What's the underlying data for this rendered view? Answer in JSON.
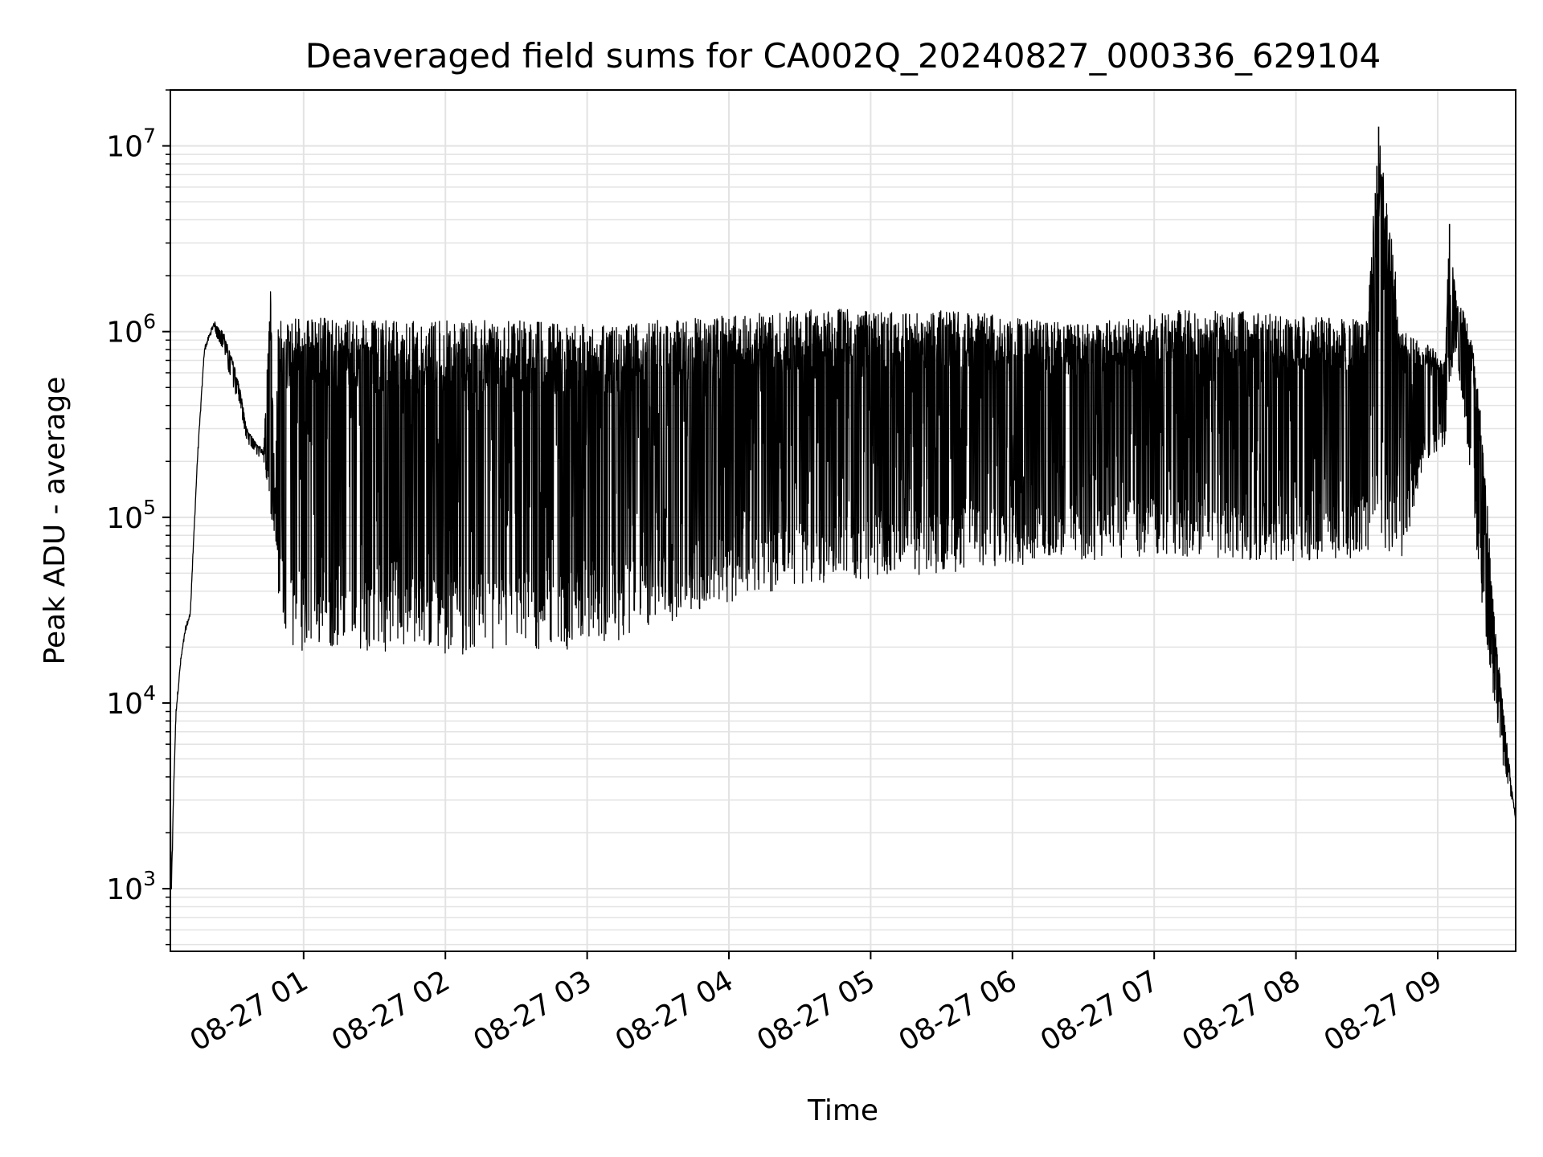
{
  "chart_data": {
    "type": "line",
    "title": "Deaveraged field sums for CA002Q_20240827_000336_629104",
    "xlabel": "Time",
    "ylabel": "Peak ADU - average",
    "yscale": "log",
    "ylim": [
      460,
      20000000
    ],
    "xlim": [
      "2024-08-27 00:03:36",
      "2024-08-27 09:33:00"
    ],
    "grid": true,
    "line_color": "#000000",
    "grid_color": "#e3e3e3",
    "x_ticks": [
      {
        "value": "2024-08-27 01:00",
        "label": "08-27 01"
      },
      {
        "value": "2024-08-27 02:00",
        "label": "08-27 02"
      },
      {
        "value": "2024-08-27 03:00",
        "label": "08-27 03"
      },
      {
        "value": "2024-08-27 04:00",
        "label": "08-27 04"
      },
      {
        "value": "2024-08-27 05:00",
        "label": "08-27 05"
      },
      {
        "value": "2024-08-27 06:00",
        "label": "08-27 06"
      },
      {
        "value": "2024-08-27 07:00",
        "label": "08-27 07"
      },
      {
        "value": "2024-08-27 08:00",
        "label": "08-27 08"
      },
      {
        "value": "2024-08-27 09:00",
        "label": "08-27 09"
      }
    ],
    "y_ticks": [
      {
        "value": 1000,
        "base": "10",
        "exp": "3"
      },
      {
        "value": 10000,
        "base": "10",
        "exp": "4"
      },
      {
        "value": 100000,
        "base": "10",
        "exp": "5"
      },
      {
        "value": 1000000,
        "base": "10",
        "exp": "6"
      },
      {
        "value": 10000000,
        "base": "10",
        "exp": "7"
      }
    ],
    "series": [
      {
        "x_time": [
          "2024-08-27 00:03:36",
          "2024-08-27 00:04:00",
          "2024-08-27 00:05:00",
          "2024-08-27 00:06:00",
          "2024-08-27 00:08:00",
          "2024-08-27 00:10:00",
          "2024-08-27 00:12:00",
          "2024-08-27 00:15:00",
          "2024-08-27 00:18:00",
          "2024-08-27 00:22:00",
          "2024-08-27 00:26:00",
          "2024-08-27 00:30:00",
          "2024-08-27 00:33:00",
          "2024-08-27 00:36:00",
          "2024-08-27 00:40:00",
          "2024-08-27 00:43:00",
          "2024-08-27 00:46:00",
          "2024-08-27 00:48:00",
          "2024-08-27 00:49:00",
          "2024-08-27 00:52:00",
          "2024-08-27 00:55:00",
          "2024-08-27 00:58:00",
          "2024-08-27 01:05:00",
          "2024-08-27 01:15:00",
          "2024-08-27 01:30:00",
          "2024-08-27 01:50:00",
          "2024-08-27 02:10:00",
          "2024-08-27 02:30:00",
          "2024-08-27 02:50:00",
          "2024-08-27 03:10:00",
          "2024-08-27 03:30:00",
          "2024-08-27 03:50:00",
          "2024-08-27 04:10:00",
          "2024-08-27 04:30:00",
          "2024-08-27 04:50:00",
          "2024-08-27 05:10:00",
          "2024-08-27 05:30:00",
          "2024-08-27 05:50:00",
          "2024-08-27 06:10:00",
          "2024-08-27 06:30:00",
          "2024-08-27 06:50:00",
          "2024-08-27 07:10:00",
          "2024-08-27 07:30:00",
          "2024-08-27 07:50:00",
          "2024-08-27 08:10:00",
          "2024-08-27 08:30:00",
          "2024-08-27 08:35:00",
          "2024-08-27 08:45:00",
          "2024-08-27 08:55:00",
          "2024-08-27 09:03:00",
          "2024-08-27 09:05:00",
          "2024-08-27 09:08:00",
          "2024-08-27 09:12:00",
          "2024-08-27 09:15:00",
          "2024-08-27 09:18:00",
          "2024-08-27 09:21:00",
          "2024-08-27 09:24:00",
          "2024-08-27 09:27:00",
          "2024-08-27 09:30:00",
          "2024-08-27 09:33:00"
        ],
        "upper": [
          3700,
          1000,
          3500,
          9000,
          17000,
          25000,
          30000,
          200000,
          800000,
          1100000,
          1000000,
          700000,
          500000,
          300000,
          250000,
          220000,
          1700000,
          100000,
          1200000,
          1100000,
          1200000,
          1250000,
          1200000,
          1150000,
          1150000,
          1150000,
          1150000,
          1150000,
          1100000,
          1100000,
          1150000,
          1200000,
          1250000,
          1300000,
          1350000,
          1300000,
          1300000,
          1250000,
          1150000,
          1100000,
          1200000,
          1300000,
          1300000,
          1250000,
          1200000,
          1150000,
          12700000,
          1000000,
          900000,
          700000,
          3800000,
          1500000,
          1200000,
          800000,
          400000,
          120000,
          30000,
          12000,
          5000,
          2300
        ],
        "lower": [
          3700,
          750,
          3500,
          9000,
          17000,
          25000,
          30000,
          200000,
          800000,
          1000000,
          800000,
          500000,
          400000,
          250000,
          220000,
          200000,
          100000,
          80000,
          40000,
          25000,
          20000,
          19000,
          20000,
          20000,
          19000,
          19000,
          18000,
          18000,
          19000,
          21000,
          26000,
          32000,
          38000,
          43000,
          46000,
          48000,
          50000,
          52000,
          55000,
          58000,
          60000,
          62000,
          60000,
          58000,
          58000,
          60000,
          62000,
          60000,
          200000,
          220000,
          500000,
          700000,
          300000,
          100000,
          40000,
          20000,
          10000,
          5000,
          3500,
          2300
        ]
      }
    ],
    "annotations": [
      {
        "type": "spike",
        "x_time": "2024-08-27 08:35:00",
        "value": 12700000
      },
      {
        "type": "spike",
        "x_time": "2024-08-27 09:05:00",
        "value": 3800000
      }
    ]
  }
}
